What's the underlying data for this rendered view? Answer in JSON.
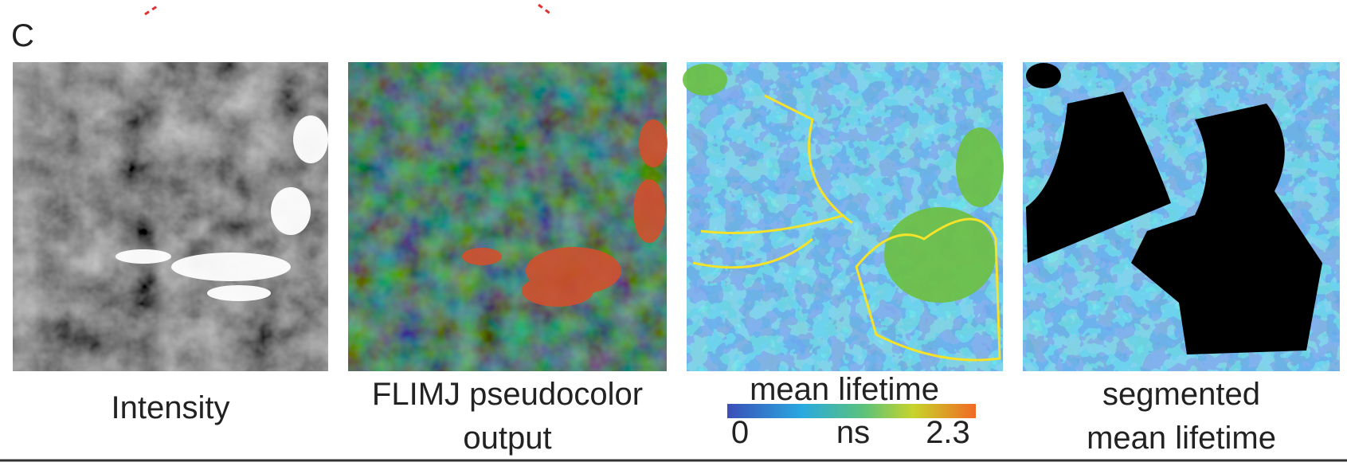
{
  "panel_label": "C",
  "panels": [
    {
      "caption_lines": [
        "Intensity"
      ]
    },
    {
      "caption_lines": [
        "FLIMJ pseudocolor",
        "output"
      ]
    },
    {
      "title": "mean lifetime",
      "colorbar": {
        "min": 0,
        "unit": "ns",
        "max": 2.3
      }
    },
    {
      "caption_lines": [
        "segmented",
        "mean lifetime"
      ]
    }
  ]
}
